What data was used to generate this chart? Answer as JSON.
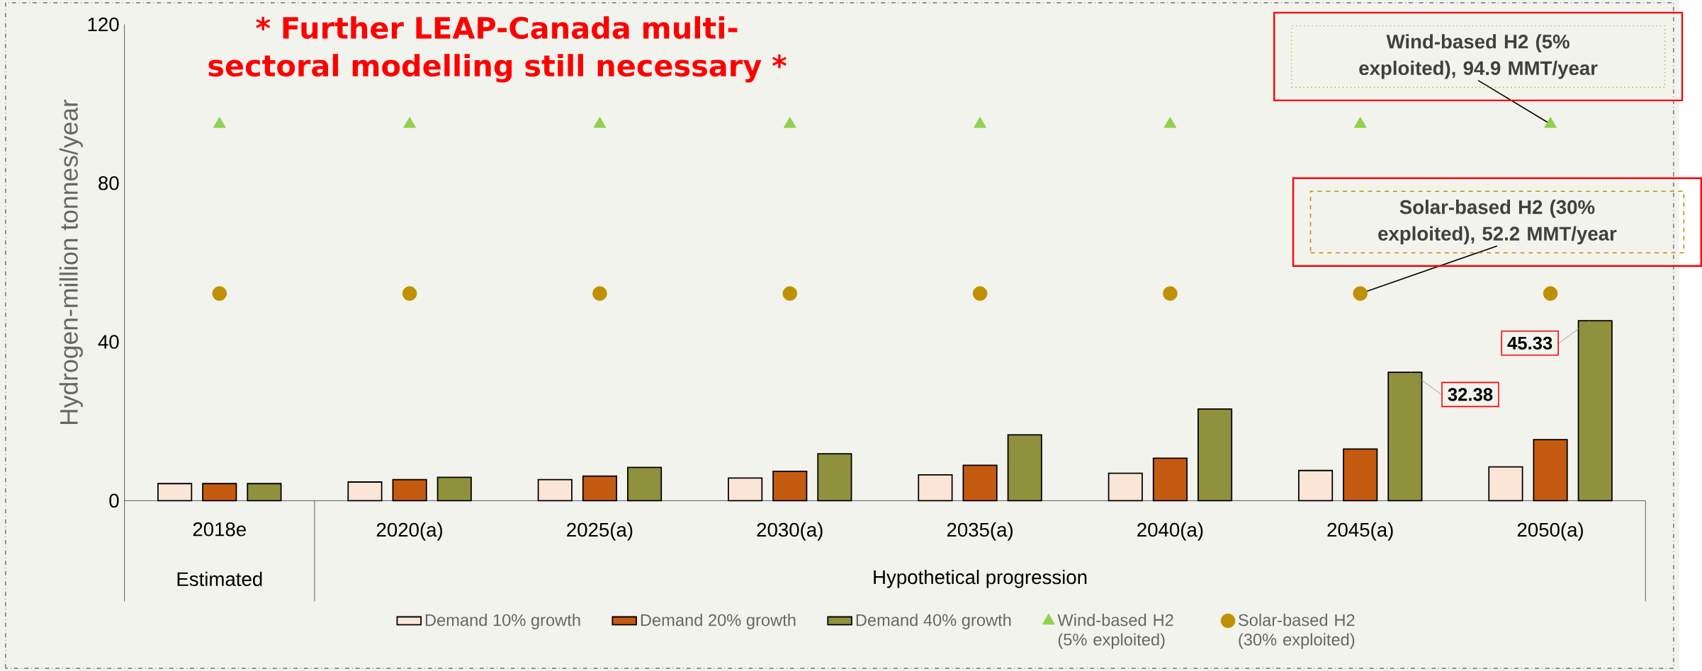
{
  "chart_data": {
    "type": "bar",
    "title": "* Further LEAP-Canada multi-sectoral modelling still necessary *",
    "ylabel": "Hydrogen-million tonnes/year",
    "categories": [
      "2018e",
      "2020(a)",
      "2025(a)",
      "2030(a)",
      "2035(a)",
      "2040(a)",
      "2045(a)",
      "2050(a)"
    ],
    "series": [
      {
        "name": "Demand 10% growth",
        "color": "#fbe5d6",
        "values": [
          4.3,
          4.7,
          5.3,
          5.7,
          6.5,
          6.9,
          7.6,
          8.5
        ]
      },
      {
        "name": "Demand 20% growth",
        "color": "#c55a11",
        "values": [
          4.3,
          5.3,
          6.2,
          7.4,
          8.9,
          10.7,
          13.0,
          15.4
        ]
      },
      {
        "name": "Demand 40% growth",
        "color": "#8f913d",
        "values": [
          4.3,
          5.9,
          8.4,
          11.8,
          16.6,
          23.1,
          32.38,
          45.33
        ],
        "value_labels": [
          null,
          null,
          null,
          null,
          null,
          null,
          "32.38",
          "45.33"
        ]
      },
      {
        "name": "Wind-based H2 (5% exploited)",
        "type": "scatter",
        "marker": "triangle",
        "color": "#92d050",
        "values": [
          94.9,
          94.9,
          94.9,
          94.9,
          94.9,
          94.9,
          94.9,
          94.9
        ]
      },
      {
        "name": "Solar-based H2 (30% exploited)",
        "type": "scatter",
        "marker": "circle",
        "color": "#bf9000",
        "values": [
          52.2,
          52.2,
          52.2,
          52.2,
          52.2,
          52.2,
          52.2,
          52.2
        ]
      }
    ],
    "ylim": [
      0,
      120
    ],
    "yticks": [
      0,
      40,
      80,
      120
    ],
    "legend": "bottom",
    "annotations": [
      "Estimated",
      "Hypothetical progression",
      {
        "text": "Wind-based H2 (5% exploited), 94.9 MMT/year",
        "x": "2050(a)",
        "y": 94.9
      },
      {
        "text": "Solar-based H2 (30% exploited), 52.2 MMT/year",
        "x": "2045(a)",
        "y": 52.2
      }
    ]
  }
}
